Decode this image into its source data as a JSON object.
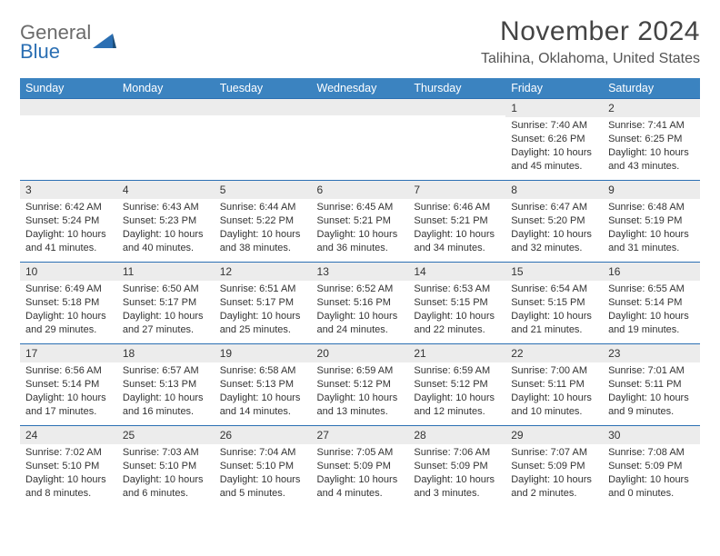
{
  "logo": {
    "word1": "General",
    "word2": "Blue"
  },
  "title": "November 2024",
  "location": "Talihina, Oklahoma, United States",
  "colors": {
    "header_bg": "#3b83c0",
    "header_text": "#ffffff",
    "rule": "#2b6fb3",
    "daynum_bg": "#ececec",
    "text": "#333333",
    "logo_gray": "#6b6b6b",
    "logo_blue": "#2b6fb3"
  },
  "typography": {
    "title_fontsize": 30,
    "location_fontsize": 16,
    "header_fontsize": 12.5,
    "cell_fontsize": 11
  },
  "days_header": [
    "Sunday",
    "Monday",
    "Tuesday",
    "Wednesday",
    "Thursday",
    "Friday",
    "Saturday"
  ],
  "weeks": [
    [
      null,
      null,
      null,
      null,
      null,
      {
        "n": "1",
        "sunrise": "7:40 AM",
        "sunset": "6:26 PM",
        "dl_h": "10",
        "dl_m": "45"
      },
      {
        "n": "2",
        "sunrise": "7:41 AM",
        "sunset": "6:25 PM",
        "dl_h": "10",
        "dl_m": "43"
      }
    ],
    [
      {
        "n": "3",
        "sunrise": "6:42 AM",
        "sunset": "5:24 PM",
        "dl_h": "10",
        "dl_m": "41"
      },
      {
        "n": "4",
        "sunrise": "6:43 AM",
        "sunset": "5:23 PM",
        "dl_h": "10",
        "dl_m": "40"
      },
      {
        "n": "5",
        "sunrise": "6:44 AM",
        "sunset": "5:22 PM",
        "dl_h": "10",
        "dl_m": "38"
      },
      {
        "n": "6",
        "sunrise": "6:45 AM",
        "sunset": "5:21 PM",
        "dl_h": "10",
        "dl_m": "36"
      },
      {
        "n": "7",
        "sunrise": "6:46 AM",
        "sunset": "5:21 PM",
        "dl_h": "10",
        "dl_m": "34"
      },
      {
        "n": "8",
        "sunrise": "6:47 AM",
        "sunset": "5:20 PM",
        "dl_h": "10",
        "dl_m": "32"
      },
      {
        "n": "9",
        "sunrise": "6:48 AM",
        "sunset": "5:19 PM",
        "dl_h": "10",
        "dl_m": "31"
      }
    ],
    [
      {
        "n": "10",
        "sunrise": "6:49 AM",
        "sunset": "5:18 PM",
        "dl_h": "10",
        "dl_m": "29"
      },
      {
        "n": "11",
        "sunrise": "6:50 AM",
        "sunset": "5:17 PM",
        "dl_h": "10",
        "dl_m": "27"
      },
      {
        "n": "12",
        "sunrise": "6:51 AM",
        "sunset": "5:17 PM",
        "dl_h": "10",
        "dl_m": "25"
      },
      {
        "n": "13",
        "sunrise": "6:52 AM",
        "sunset": "5:16 PM",
        "dl_h": "10",
        "dl_m": "24"
      },
      {
        "n": "14",
        "sunrise": "6:53 AM",
        "sunset": "5:15 PM",
        "dl_h": "10",
        "dl_m": "22"
      },
      {
        "n": "15",
        "sunrise": "6:54 AM",
        "sunset": "5:15 PM",
        "dl_h": "10",
        "dl_m": "21"
      },
      {
        "n": "16",
        "sunrise": "6:55 AM",
        "sunset": "5:14 PM",
        "dl_h": "10",
        "dl_m": "19"
      }
    ],
    [
      {
        "n": "17",
        "sunrise": "6:56 AM",
        "sunset": "5:14 PM",
        "dl_h": "10",
        "dl_m": "17"
      },
      {
        "n": "18",
        "sunrise": "6:57 AM",
        "sunset": "5:13 PM",
        "dl_h": "10",
        "dl_m": "16"
      },
      {
        "n": "19",
        "sunrise": "6:58 AM",
        "sunset": "5:13 PM",
        "dl_h": "10",
        "dl_m": "14"
      },
      {
        "n": "20",
        "sunrise": "6:59 AM",
        "sunset": "5:12 PM",
        "dl_h": "10",
        "dl_m": "13"
      },
      {
        "n": "21",
        "sunrise": "6:59 AM",
        "sunset": "5:12 PM",
        "dl_h": "10",
        "dl_m": "12"
      },
      {
        "n": "22",
        "sunrise": "7:00 AM",
        "sunset": "5:11 PM",
        "dl_h": "10",
        "dl_m": "10"
      },
      {
        "n": "23",
        "sunrise": "7:01 AM",
        "sunset": "5:11 PM",
        "dl_h": "10",
        "dl_m": "9"
      }
    ],
    [
      {
        "n": "24",
        "sunrise": "7:02 AM",
        "sunset": "5:10 PM",
        "dl_h": "10",
        "dl_m": "8"
      },
      {
        "n": "25",
        "sunrise": "7:03 AM",
        "sunset": "5:10 PM",
        "dl_h": "10",
        "dl_m": "6"
      },
      {
        "n": "26",
        "sunrise": "7:04 AM",
        "sunset": "5:10 PM",
        "dl_h": "10",
        "dl_m": "5"
      },
      {
        "n": "27",
        "sunrise": "7:05 AM",
        "sunset": "5:09 PM",
        "dl_h": "10",
        "dl_m": "4"
      },
      {
        "n": "28",
        "sunrise": "7:06 AM",
        "sunset": "5:09 PM",
        "dl_h": "10",
        "dl_m": "3"
      },
      {
        "n": "29",
        "sunrise": "7:07 AM",
        "sunset": "5:09 PM",
        "dl_h": "10",
        "dl_m": "2"
      },
      {
        "n": "30",
        "sunrise": "7:08 AM",
        "sunset": "5:09 PM",
        "dl_h": "10",
        "dl_m": "0"
      }
    ]
  ],
  "labels": {
    "sunrise": "Sunrise: ",
    "sunset": "Sunset: ",
    "daylight_a": "Daylight: ",
    "daylight_b": " hours and ",
    "daylight_c": " minutes."
  }
}
